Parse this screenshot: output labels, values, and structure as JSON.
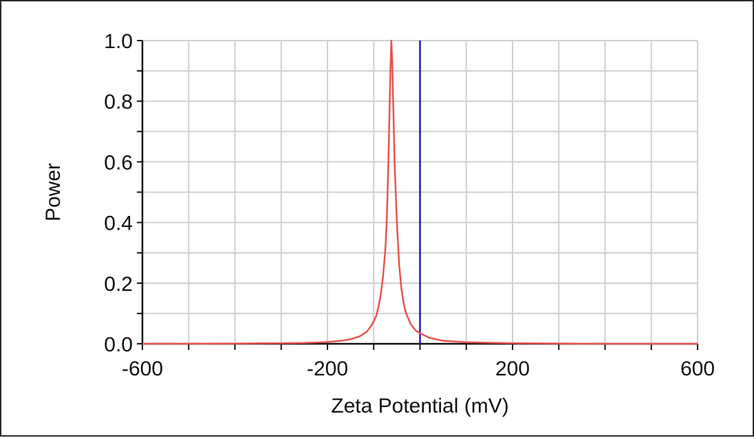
{
  "chart_data": {
    "type": "line",
    "title": "",
    "xlabel": "Zeta Potential (mV)",
    "ylabel": "Power",
    "xlim": [
      -600,
      600
    ],
    "ylim": [
      0,
      1.0
    ],
    "x_ticks": [
      -600,
      -500,
      -400,
      -300,
      -200,
      -100,
      0,
      100,
      200,
      300,
      400,
      500,
      600
    ],
    "x_tick_labels": [
      "-600",
      "-200",
      "200",
      "600"
    ],
    "x_tick_labels_at": [
      -600,
      -200,
      200,
      600
    ],
    "y_ticks": [
      0.0,
      0.1,
      0.2,
      0.3,
      0.4,
      0.5,
      0.6,
      0.7,
      0.8,
      0.9,
      1.0
    ],
    "y_tick_labels": [
      "0.0",
      "0.2",
      "0.4",
      "0.6",
      "0.8",
      "1.0"
    ],
    "y_tick_labels_at": [
      0.0,
      0.2,
      0.4,
      0.6,
      0.8,
      1.0
    ],
    "grid": true,
    "series": [
      {
        "color": "#e8534f",
        "x": [
          -600,
          -400,
          -300,
          -250,
          -200,
          -170,
          -150,
          -130,
          -115,
          -105,
          -95,
          -90,
          -85,
          -80,
          -75,
          -72,
          -70,
          -68,
          -66,
          -64,
          -62,
          -60,
          -58,
          -55,
          -50,
          -45,
          -40,
          -35,
          -30,
          -20,
          -10,
          0,
          20,
          50,
          100,
          200,
          400,
          600
        ],
        "y": [
          0.0,
          0.001,
          0.002,
          0.003,
          0.006,
          0.01,
          0.015,
          0.025,
          0.04,
          0.06,
          0.09,
          0.12,
          0.16,
          0.22,
          0.31,
          0.4,
          0.5,
          0.62,
          0.76,
          0.9,
          1.0,
          0.93,
          0.8,
          0.6,
          0.4,
          0.26,
          0.18,
          0.13,
          0.1,
          0.065,
          0.045,
          0.035,
          0.02,
          0.01,
          0.005,
          0.002,
          0.0,
          0.0
        ]
      }
    ],
    "vertical_line": {
      "x": 0,
      "color": "#1a1aa8"
    }
  }
}
